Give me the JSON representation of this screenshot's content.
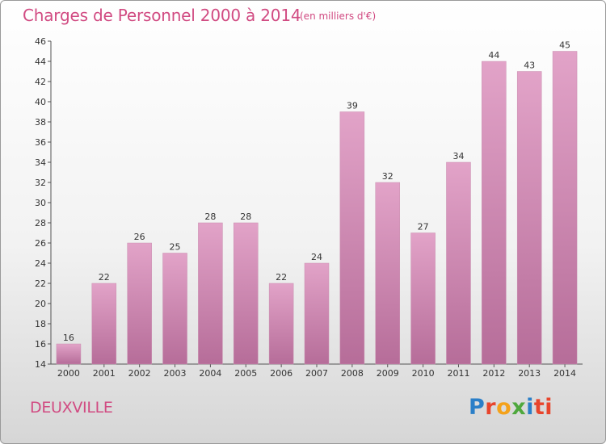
{
  "title": "Charges de Personnel 2000 à 2014",
  "subtitle": "(en milliers d'€)",
  "commune": "DEUXVILLE",
  "logo_text": "Proxiti",
  "chart_data": {
    "type": "bar",
    "title": "Charges de Personnel 2000 à 2014",
    "subtitle": "(en milliers d'€)",
    "xlabel": "",
    "ylabel": "",
    "categories": [
      "2000",
      "2001",
      "2002",
      "2003",
      "2004",
      "2005",
      "2006",
      "2007",
      "2008",
      "2009",
      "2010",
      "2011",
      "2012",
      "2013",
      "2014"
    ],
    "values": [
      16,
      22,
      26,
      25,
      28,
      28,
      22,
      24,
      39,
      32,
      27,
      34,
      44,
      43,
      45
    ],
    "ylim": [
      14,
      46
    ],
    "yticks": [
      14,
      16,
      18,
      20,
      22,
      24,
      26,
      28,
      30,
      32,
      34,
      36,
      38,
      40,
      42,
      44,
      46
    ],
    "grid": false,
    "bar_color": "#d98ab5"
  }
}
